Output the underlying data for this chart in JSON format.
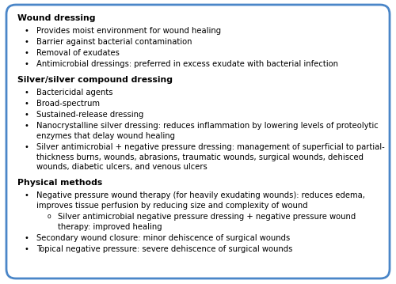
{
  "background_color": "#ffffff",
  "border_color": "#4a86c8",
  "border_linewidth": 2.0,
  "font_size": 7.2,
  "header_font_size": 7.8,
  "sections": [
    {
      "header": "Wound dressing",
      "bullets": [
        {
          "level": 1,
          "lines": [
            "Provides moist environment for wound healing"
          ]
        },
        {
          "level": 1,
          "lines": [
            "Barrier against bacterial contamination"
          ]
        },
        {
          "level": 1,
          "lines": [
            "Removal of exudates"
          ]
        },
        {
          "level": 1,
          "lines": [
            "Antimicrobial dressings: preferred in excess exudate with bacterial infection"
          ]
        }
      ]
    },
    {
      "header": "Silver/silver compound dressing",
      "bullets": [
        {
          "level": 1,
          "lines": [
            "Bactericidal agents"
          ]
        },
        {
          "level": 1,
          "lines": [
            "Broad-spectrum"
          ]
        },
        {
          "level": 1,
          "lines": [
            "Sustained-release dressing"
          ]
        },
        {
          "level": 1,
          "lines": [
            "Nanocrystalline silver dressing: reduces inflammation by lowering levels of proteolytic",
            "enzymes that delay wound healing"
          ]
        },
        {
          "level": 1,
          "lines": [
            "Silver antimicrobial + negative pressure dressing: management of superficial to partial-",
            "thickness burns, wounds, abrasions, traumatic wounds, surgical wounds, dehisced",
            "wounds, diabetic ulcers, and venous ulcers"
          ]
        }
      ]
    },
    {
      "header": "Physical methods",
      "bullets": [
        {
          "level": 1,
          "lines": [
            "Negative pressure wound therapy (for heavily exudating wounds): reduces edema,",
            "improves tissue perfusion by reducing size and complexity of wound"
          ]
        },
        {
          "level": 2,
          "lines": [
            "Silver antimicrobial negative pressure dressing + negative pressure wound",
            "therapy: improved healing"
          ]
        },
        {
          "level": 1,
          "lines": [
            "Secondary wound closure: minor dehiscence of surgical wounds"
          ]
        },
        {
          "level": 1,
          "lines": [
            "Topical negative pressure: severe dehiscence of surgical wounds"
          ]
        }
      ]
    }
  ]
}
